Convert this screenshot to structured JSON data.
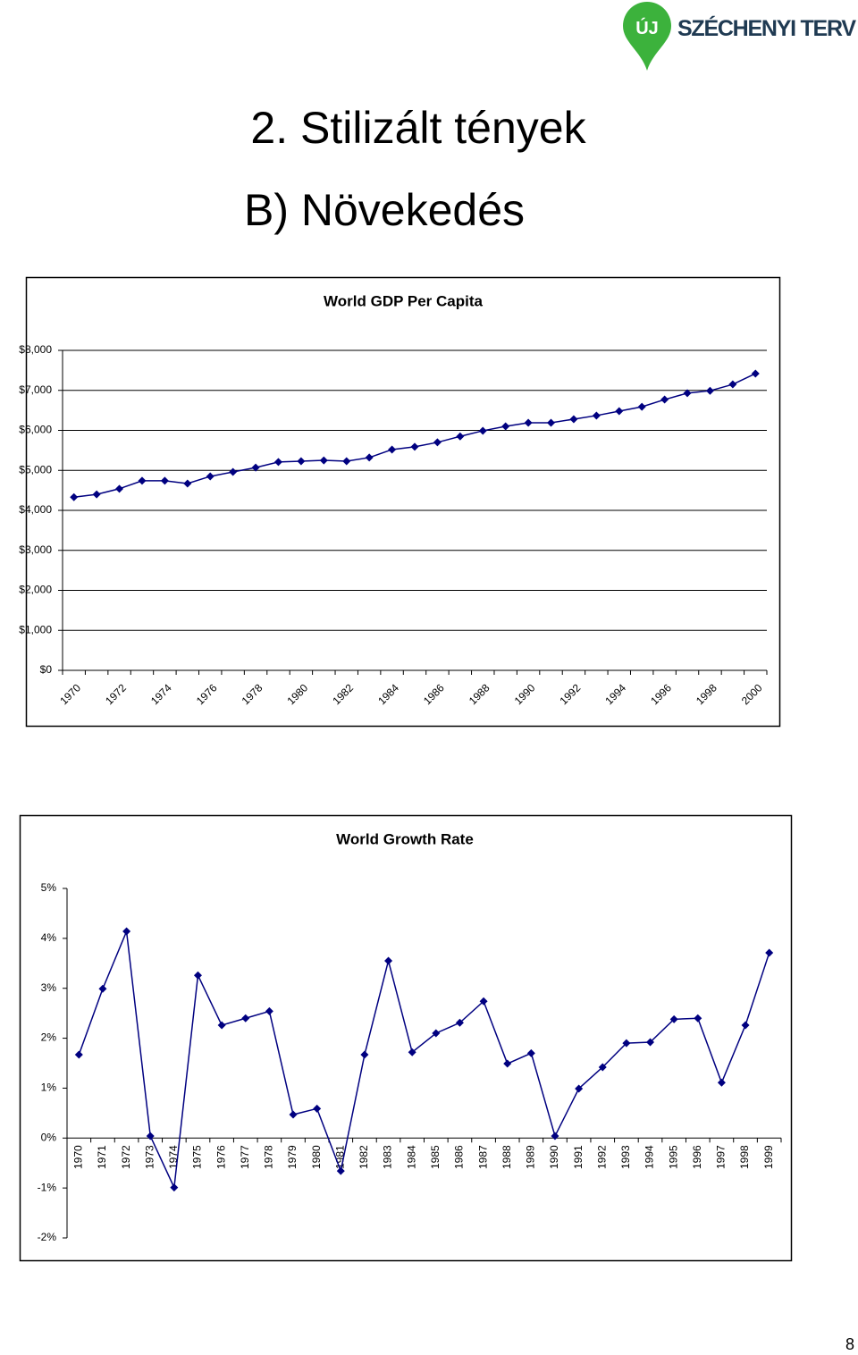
{
  "logo": {
    "mark": "ÚJ",
    "text": "SZÉCHENYI TERV"
  },
  "header": {
    "title": "2. Stilizált tények",
    "subtitle": "B) Növekedés"
  },
  "page_number": "8",
  "chart_data": [
    {
      "type": "line",
      "title": "World GDP Per Capita",
      "color": "#000080",
      "grid": true,
      "categories": [
        "1970",
        null,
        "1972",
        null,
        "1974",
        null,
        "1976",
        null,
        "1978",
        null,
        "1980",
        null,
        "1982",
        null,
        "1984",
        null,
        "1986",
        null,
        "1988",
        null,
        "1990",
        null,
        "1992",
        null,
        "1994",
        null,
        "1996",
        null,
        "1998",
        null,
        "2000"
      ],
      "values": [
        4330,
        4400,
        4540,
        4740,
        4740,
        4670,
        4850,
        4960,
        5070,
        5210,
        5230,
        5250,
        5230,
        5320,
        5520,
        5590,
        5700,
        5850,
        5990,
        6100,
        6190,
        6190,
        6280,
        6370,
        6480,
        6590,
        6770,
        6930,
        6990,
        7150,
        7420
      ],
      "ylim": [
        0,
        8000
      ],
      "yticks": [
        {
          "value": 0,
          "label": "$0"
        },
        {
          "value": 1000,
          "label": "$1,000"
        },
        {
          "value": 2000,
          "label": "$2,000"
        },
        {
          "value": 3000,
          "label": "$3,000"
        },
        {
          "value": 4000,
          "label": "$4,000"
        },
        {
          "value": 5000,
          "label": "$5,000"
        },
        {
          "value": 6000,
          "label": "$6,000"
        },
        {
          "value": 7000,
          "label": "$7,000"
        },
        {
          "value": 8000,
          "label": "$8,000"
        }
      ]
    },
    {
      "type": "line",
      "title": "World Growth Rate",
      "color": "#000080",
      "grid": false,
      "categories": [
        "1970",
        "1971",
        "1972",
        "1973",
        "1974",
        "1975",
        "1976",
        "1977",
        "1978",
        "1979",
        "1980",
        "1981",
        "1982",
        "1983",
        "1984",
        "1985",
        "1986",
        "1987",
        "1988",
        "1989",
        "1990",
        "1991",
        "1992",
        "1993",
        "1994",
        "1995",
        "1996",
        "1997",
        "1998",
        "1999"
      ],
      "values": [
        1.67,
        2.99,
        4.14,
        0.04,
        -0.99,
        3.26,
        2.26,
        2.4,
        2.54,
        0.47,
        0.59,
        -0.66,
        1.67,
        3.55,
        1.72,
        2.1,
        2.31,
        2.74,
        1.49,
        1.7,
        0.04,
        0.99,
        1.42,
        1.9,
        1.92,
        2.38,
        2.4,
        1.11,
        2.26,
        3.71
      ],
      "ylim": [
        -2,
        5
      ],
      "yticks": [
        {
          "value": -2,
          "label": "-2%"
        },
        {
          "value": -1,
          "label": "-1%"
        },
        {
          "value": 0,
          "label": "0%"
        },
        {
          "value": 1,
          "label": "1%"
        },
        {
          "value": 2,
          "label": "2%"
        },
        {
          "value": 3,
          "label": "3%"
        },
        {
          "value": 4,
          "label": "4%"
        },
        {
          "value": 5,
          "label": "5%"
        }
      ]
    }
  ]
}
